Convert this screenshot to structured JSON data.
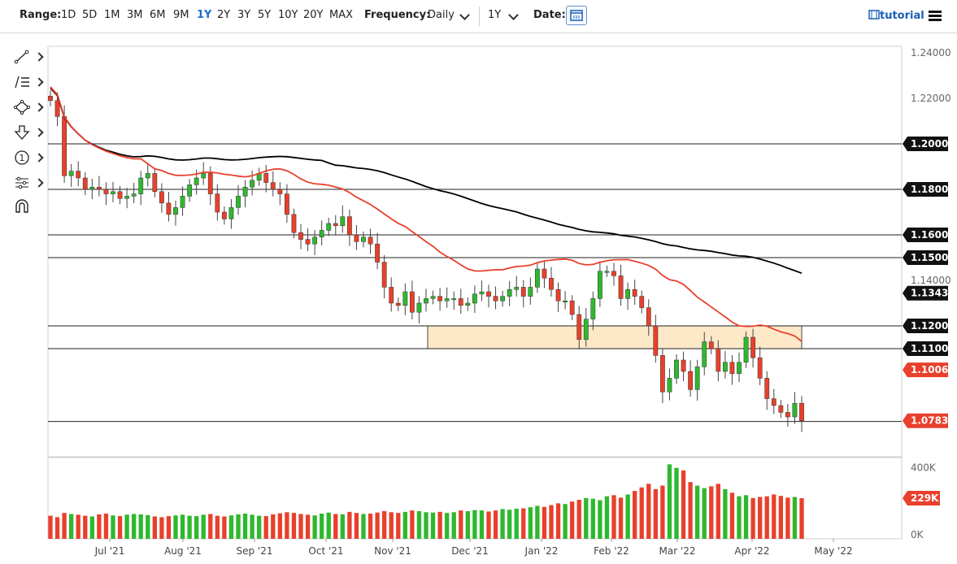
{
  "toolbar": {
    "range_label": "Range:",
    "ranges": [
      "1D",
      "5D",
      "1M",
      "3M",
      "6M",
      "9M",
      "1Y",
      "2Y",
      "3Y",
      "5Y",
      "10Y",
      "20Y",
      "MAX"
    ],
    "active_range": "1Y",
    "frequency_label": "Frequency:",
    "frequency_value": "Daily",
    "period_value": "1Y",
    "date_label": "Date:",
    "tutorial_label": "tutorial"
  },
  "tools": [
    "line-tool-icon",
    "list-tool-icon",
    "shape-tool-icon",
    "arrow-tool-icon",
    "number-tool-icon",
    "measure-tool-icon",
    "magnet-tool-icon"
  ],
  "colors": {
    "up": "#2eb82e",
    "down": "#e8402c",
    "ma50": "#e8402c",
    "ma200": "#000000",
    "zone_fill": "#fde9c8",
    "zone_border": "#222222"
  },
  "chart_data": {
    "type": "candlestick",
    "instrument_note": "",
    "x_ticks": [
      "Jul '21",
      "Aug '21",
      "Sep '21",
      "Oct '21",
      "Nov '21",
      "Dec '21",
      "Jan '22",
      "Feb '22",
      "Mar '22",
      "Apr '22",
      "May '22"
    ],
    "y_ticks": [
      "1.24000",
      "1.22000",
      "1.20000",
      "1.18000",
      "1.16000",
      "1.15000",
      "1.14000",
      "1.13439",
      "1.12000",
      "1.11000",
      "1.10069",
      "1.07831"
    ],
    "ylim": [
      1.05,
      1.245
    ],
    "horizontal_levels": [
      1.2,
      1.18,
      1.16,
      1.15,
      1.12,
      1.11,
      1.078
    ],
    "zone": {
      "low": 1.11,
      "high": 1.12,
      "from": "Nov 17 '21",
      "to": "Apr 20 '22"
    },
    "last_price": "1.07831",
    "ma_50_last": "1.10069",
    "ma_200_last": "1.13439",
    "closes": [
      1.219,
      1.212,
      1.186,
      1.188,
      1.185,
      1.18,
      1.181,
      1.18,
      1.178,
      1.179,
      1.176,
      1.177,
      1.178,
      1.185,
      1.187,
      1.179,
      1.174,
      1.169,
      1.172,
      1.177,
      1.182,
      1.185,
      1.187,
      1.178,
      1.17,
      1.167,
      1.172,
      1.177,
      1.181,
      1.184,
      1.187,
      1.183,
      1.18,
      1.178,
      1.169,
      1.161,
      1.158,
      1.156,
      1.159,
      1.162,
      1.165,
      1.164,
      1.168,
      1.16,
      1.157,
      1.159,
      1.156,
      1.148,
      1.137,
      1.13,
      1.129,
      1.135,
      1.126,
      1.13,
      1.132,
      1.133,
      1.131,
      1.132,
      1.132,
      1.129,
      1.13,
      1.134,
      1.135,
      1.133,
      1.131,
      1.133,
      1.136,
      1.137,
      1.133,
      1.137,
      1.145,
      1.141,
      1.136,
      1.131,
      1.131,
      1.125,
      1.114,
      1.123,
      1.132,
      1.144,
      1.144,
      1.142,
      1.132,
      1.136,
      1.133,
      1.128,
      1.12,
      1.107,
      1.091,
      1.097,
      1.105,
      1.1,
      1.092,
      1.102,
      1.113,
      1.11,
      1.1,
      1.104,
      1.099,
      1.104,
      1.115,
      1.106,
      1.097,
      1.088,
      1.085,
      1.082,
      1.08,
      1.086,
      1.0783
    ],
    "volumes_k": [
      130,
      122,
      146,
      140,
      136,
      130,
      126,
      138,
      142,
      132,
      128,
      136,
      140,
      138,
      134,
      126,
      122,
      128,
      132,
      136,
      130,
      128,
      136,
      140,
      130,
      126,
      132,
      138,
      142,
      136,
      130,
      128,
      138,
      144,
      150,
      146,
      140,
      136,
      132,
      142,
      148,
      140,
      138,
      152,
      146,
      140,
      142,
      148,
      156,
      150,
      146,
      152,
      160,
      156,
      150,
      148,
      152,
      146,
      150,
      160,
      156,
      162,
      160,
      154,
      160,
      168,
      164,
      170,
      172,
      178,
      186,
      180,
      190,
      200,
      196,
      210,
      220,
      230,
      226,
      218,
      240,
      246,
      232,
      250,
      270,
      290,
      310,
      280,
      300,
      420,
      400,
      386,
      320,
      300,
      286,
      296,
      310,
      280,
      260,
      240,
      246,
      230,
      236,
      240,
      250,
      242,
      232,
      236,
      229
    ],
    "volume_axis": [
      "400K",
      "0K"
    ],
    "last_volume": "229K"
  }
}
